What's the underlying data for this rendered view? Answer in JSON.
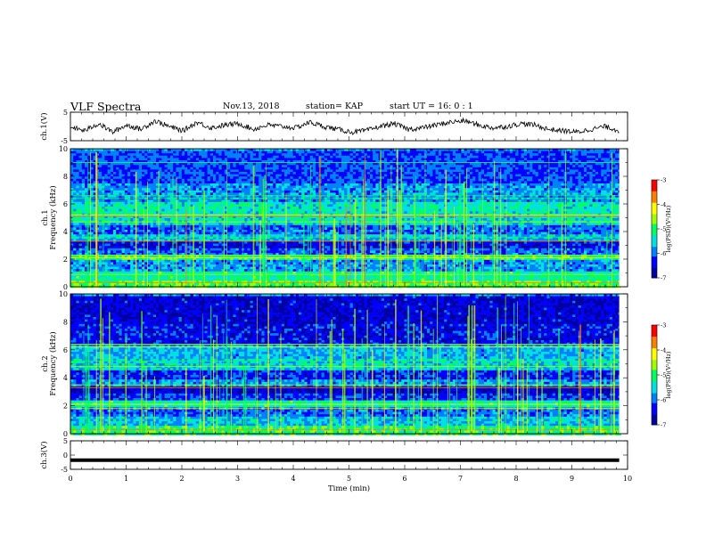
{
  "header": {
    "title": "VLF Spectra",
    "date": "Nov.13, 2018",
    "station": "station= KAP",
    "start": "start  UT =   16: 0  : 1"
  },
  "chart_data": [
    {
      "type": "line",
      "ylabel": "ch.1(V)",
      "ylim": [
        -5,
        5
      ],
      "yticks": [
        "5",
        "-5"
      ],
      "xlim": [
        0,
        10
      ],
      "grid": false,
      "x_start": 0,
      "x_end": 9.85,
      "sample_y": [
        -0.2,
        -1.5,
        1.0,
        -2.0,
        0.5,
        -1.0,
        2.0,
        0.0,
        -1.5,
        1.5,
        -0.5,
        0.5,
        1.0,
        -1.0,
        0.5,
        0.0,
        -0.5,
        1.5,
        0.0,
        -1.0,
        -2.0,
        -1.5,
        0.0,
        1.0,
        -1.0,
        -0.5,
        0.5,
        1.5,
        2.0,
        0.5,
        -0.5,
        0.0,
        1.0,
        0.5,
        -1.0,
        -1.5,
        -2.0,
        -1.0,
        0.0,
        -1.5
      ],
      "color": "#000000"
    },
    {
      "type": "heatmap",
      "ylabel": "ch.1  Frequency (kHz)",
      "ylim": [
        0,
        10
      ],
      "yticks": [
        "0",
        "2",
        "4",
        "6",
        "8",
        "10"
      ],
      "xlim": [
        0,
        10
      ],
      "data_x_end": 9.85,
      "colorbar": {
        "label": "log(PSD)(V²/Hz)",
        "range": [
          -7,
          -3
        ],
        "ticks": [
          "-3",
          "-4",
          "-5",
          "-6",
          "-7"
        ],
        "colors": [
          "#0000a0",
          "#0000ff",
          "#0080ff",
          "#00e0e0",
          "#00ff60",
          "#a0ff00",
          "#ffff00",
          "#ff8000",
          "#ff0000",
          "#ffffff"
        ]
      }
    },
    {
      "type": "heatmap",
      "ylabel": "ch.2  Frequency (kHz)",
      "ylim": [
        0,
        10
      ],
      "yticks": [
        "0",
        "2",
        "4",
        "6",
        "8",
        "10"
      ],
      "xlim": [
        0,
        10
      ],
      "data_x_end": 9.85,
      "colorbar": {
        "label": "log(PSD)(V²/Hz)",
        "range": [
          -7,
          -3
        ],
        "ticks": [
          "-3",
          "-4",
          "-5",
          "-6",
          "-7"
        ],
        "colors": [
          "#0000a0",
          "#0000ff",
          "#0080ff",
          "#00e0e0",
          "#00ff60",
          "#a0ff00",
          "#ffff00",
          "#ff8000",
          "#ff0000",
          "#ffffff"
        ]
      }
    },
    {
      "type": "line",
      "ylabel": "ch.3(V)",
      "ylim": [
        -5,
        5
      ],
      "yticks": [
        "5",
        "0",
        "-5"
      ],
      "xlim": [
        0,
        10
      ],
      "xlabel": "Time (min)",
      "xticks": [
        "0",
        "1",
        "2",
        "3",
        "4",
        "5",
        "6",
        "7",
        "8",
        "9",
        "10"
      ],
      "x_start": 0,
      "x_end": 9.85,
      "y_value": -1.8,
      "color": "#000000"
    }
  ]
}
